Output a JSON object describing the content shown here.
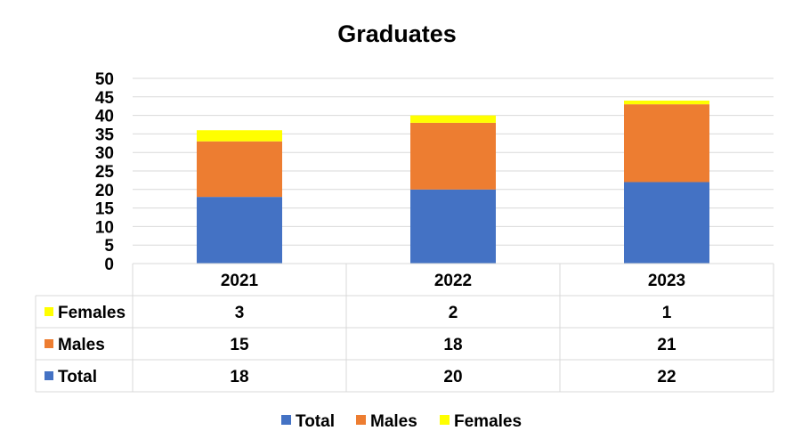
{
  "chart_data": {
    "type": "bar",
    "stacked": true,
    "title": "Graduates",
    "categories": [
      "2021",
      "2022",
      "2023"
    ],
    "series": [
      {
        "name": "Total",
        "values": [
          18,
          20,
          22
        ],
        "color": "#4472C4"
      },
      {
        "name": "Males",
        "values": [
          15,
          18,
          21
        ],
        "color": "#ED7D31"
      },
      {
        "name": "Females",
        "values": [
          3,
          2,
          1
        ],
        "color": "#FFFF00"
      }
    ],
    "ylim": [
      0,
      50
    ],
    "yticks": [
      "0",
      "5",
      "10",
      "15",
      "20",
      "25",
      "30",
      "35",
      "40",
      "45",
      "50"
    ],
    "grid": true,
    "legend_position": "bottom",
    "data_table": true,
    "data_table_row_order": [
      "Females",
      "Males",
      "Total"
    ]
  }
}
